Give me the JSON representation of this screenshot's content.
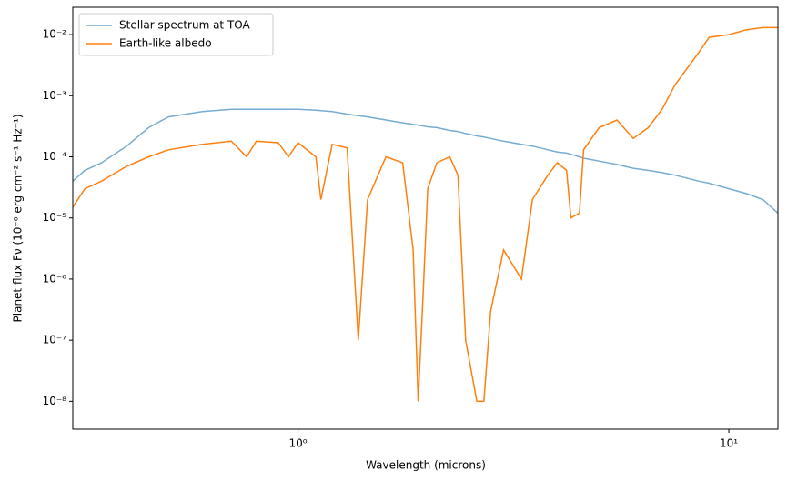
{
  "chart_data": {
    "type": "line",
    "xlabel": "Wavelength (microns)",
    "ylabel": "Planet flux Fν (10⁻⁶ erg cm⁻² s⁻¹ Hz⁻¹)",
    "xscale": "log",
    "yscale": "log",
    "xlim": [
      0.3,
      13
    ],
    "ylim": [
      3.5e-09,
      0.028
    ],
    "xticks": [
      {
        "value": 1,
        "label": "10⁰"
      },
      {
        "value": 10,
        "label": "10¹"
      }
    ],
    "yticks": [
      {
        "value": 1e-08,
        "label": "10⁻⁸"
      },
      {
        "value": 1e-07,
        "label": "10⁻⁷"
      },
      {
        "value": 1e-06,
        "label": "10⁻⁶"
      },
      {
        "value": 1e-05,
        "label": "10⁻⁵"
      },
      {
        "value": 0.0001,
        "label": "10⁻⁴"
      },
      {
        "value": 0.001,
        "label": "10⁻³"
      },
      {
        "value": 0.01,
        "label": "10⁻²"
      }
    ],
    "legend": "upper left",
    "x": [
      0.3,
      0.32,
      0.35,
      0.4,
      0.45,
      0.5,
      0.6,
      0.7,
      0.76,
      0.8,
      0.9,
      0.95,
      1.0,
      1.1,
      1.13,
      1.2,
      1.3,
      1.38,
      1.45,
      1.6,
      1.75,
      1.85,
      1.9,
      1.95,
      2.0,
      2.1,
      2.25,
      2.35,
      2.45,
      2.6,
      2.7,
      2.8,
      3.0,
      3.3,
      3.5,
      3.8,
      4.0,
      4.2,
      4.3,
      4.5,
      4.6,
      5.0,
      5.5,
      6.0,
      6.5,
      7.0,
      7.5,
      8.5,
      9.0,
      10,
      11,
      12,
      13
    ],
    "series": [
      {
        "name": "Stellar spectrum at TOA",
        "color": "#76acd0",
        "values": [
          4e-05,
          6e-05,
          8e-05,
          0.00015,
          0.0003,
          0.00045,
          0.00055,
          0.0006,
          0.0006,
          0.0006,
          0.0006,
          0.0006,
          0.0006,
          0.00058,
          0.00057,
          0.00055,
          0.0005,
          0.00047,
          0.00045,
          0.0004,
          0.00036,
          0.00034,
          0.00033,
          0.00032,
          0.00031,
          0.0003,
          0.00027,
          0.00026,
          0.00024,
          0.00022,
          0.00021,
          0.0002,
          0.00018,
          0.00016,
          0.00015,
          0.00013,
          0.00012,
          0.000115,
          0.00011,
          0.0001,
          9.5e-05,
          8.5e-05,
          7.5e-05,
          6.5e-05,
          6e-05,
          5.5e-05,
          5e-05,
          4e-05,
          3.7e-05,
          3e-05,
          2.5e-05,
          2e-05,
          1.2e-05
        ]
      },
      {
        "name": "Earth-like albedo",
        "color": "#ff7f0e",
        "values": [
          1.5e-05,
          3e-05,
          4e-05,
          7e-05,
          0.0001,
          0.00013,
          0.00016,
          0.00018,
          0.0001,
          0.00018,
          0.00017,
          0.0001,
          0.00017,
          0.0001,
          2e-05,
          0.00016,
          0.00014,
          1e-07,
          2e-05,
          0.0001,
          8e-05,
          3e-06,
          1e-08,
          5e-07,
          3e-05,
          8e-05,
          0.0001,
          5e-05,
          1e-07,
          1e-08,
          1e-08,
          3e-07,
          3e-06,
          1e-06,
          2e-05,
          5e-05,
          8e-05,
          6e-05,
          1e-05,
          1.2e-05,
          0.00013,
          0.0003,
          0.0004,
          0.0002,
          0.0003,
          0.0006,
          0.0015,
          0.005,
          0.009,
          0.01,
          0.012,
          0.013,
          0.013
        ]
      }
    ]
  }
}
